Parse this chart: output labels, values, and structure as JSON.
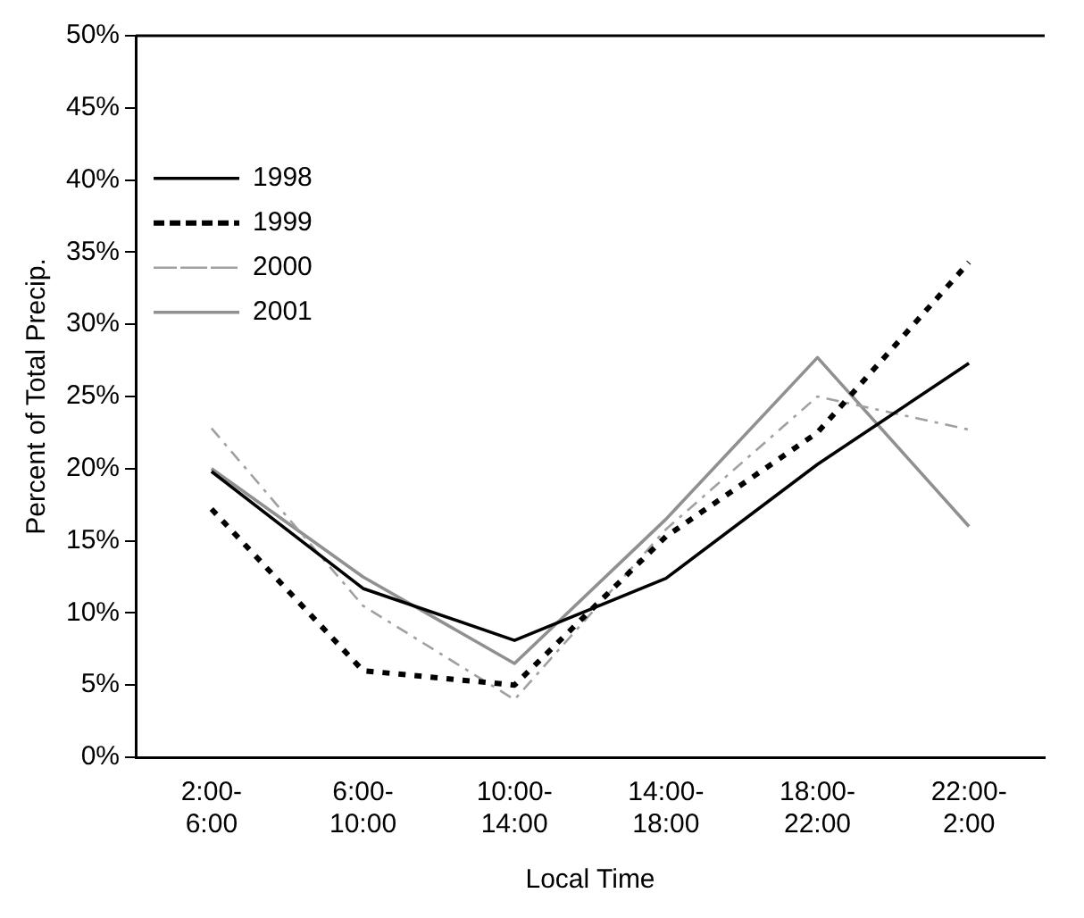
{
  "chart_data": {
    "type": "line",
    "xlabel": "Local Time",
    "ylabel": "Percent of Total Precip.",
    "categories": [
      "2:00-\n6:00",
      "6:00-\n10:00",
      "10:00-\n14:00",
      "14:00-\n18:00",
      "18:00-\n22:00",
      "22:00-\n2:00"
    ],
    "series": [
      {
        "name": "1998",
        "color": "#000000",
        "line_style": "solid",
        "values": [
          19.8,
          11.7,
          8.1,
          12.4,
          20.3,
          27.3
        ]
      },
      {
        "name": "1999",
        "color": "#000000",
        "line_style": "dotted",
        "values": [
          17.2,
          6.0,
          5.0,
          15.3,
          22.5,
          34.3
        ]
      },
      {
        "name": "2000",
        "color": "#a0a0a0",
        "line_style": "dashed",
        "values": [
          22.8,
          10.5,
          4.0,
          15.8,
          25.0,
          22.7
        ]
      },
      {
        "name": "2001",
        "color": "#909090",
        "line_style": "solid",
        "values": [
          20.0,
          12.5,
          6.5,
          16.5,
          27.7,
          16.0
        ]
      }
    ],
    "ylim": [
      0,
      50
    ],
    "yticks": [
      {
        "value": 0,
        "label": "0%"
      },
      {
        "value": 5,
        "label": "5%"
      },
      {
        "value": 10,
        "label": "10%"
      },
      {
        "value": 15,
        "label": "15%"
      },
      {
        "value": 20,
        "label": "20%"
      },
      {
        "value": 25,
        "label": "25%"
      },
      {
        "value": 30,
        "label": "30%"
      },
      {
        "value": 35,
        "label": "35%"
      },
      {
        "value": 40,
        "label": "40%"
      },
      {
        "value": 45,
        "label": "45%"
      },
      {
        "value": 50,
        "label": "50%"
      }
    ],
    "grid": false,
    "legend": "top left",
    "marker": "none"
  }
}
